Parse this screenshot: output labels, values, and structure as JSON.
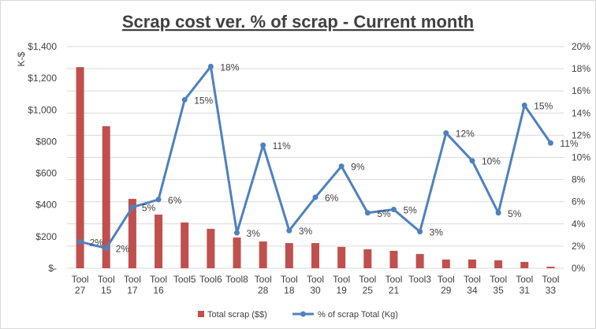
{
  "chart_data": {
    "type": "bar+line",
    "title": "Scrap cost ver. % of scrap - Current month",
    "ylabel": "K-$",
    "ylabel_right": "",
    "categories": [
      "Tool 27",
      "Tool 15",
      "Tool 17",
      "Tool 16",
      "Tool5",
      "Tool6",
      "Tool8",
      "Tool 28",
      "Tool 18",
      "Tool 30",
      "Tool 19",
      "Tool 25",
      "Tool 21",
      "Tool3",
      "Tool 29",
      "Tool 34",
      "Tool 35",
      "Tool 31",
      "Tool 33"
    ],
    "ylim": [
      0,
      1400
    ],
    "y_ticks": [
      "$-",
      "$200",
      "$400",
      "$600",
      "$800",
      "$1,000",
      "$1,200",
      "$1,400"
    ],
    "y2lim": [
      0,
      0.2
    ],
    "y2_ticks": [
      "0%",
      "2%",
      "4%",
      "6%",
      "8%",
      "10%",
      "12%",
      "14%",
      "16%",
      "18%",
      "20%"
    ],
    "grid": true,
    "legend_position": "bottom",
    "series": [
      {
        "name": "Total scrap ($$)",
        "type": "bar",
        "axis": "left",
        "color": "#c0504d",
        "values": [
          1270,
          897,
          438,
          339,
          289,
          249,
          194,
          169,
          159,
          159,
          135,
          120,
          110,
          90,
          55,
          55,
          50,
          40,
          10
        ]
      },
      {
        "name": "% of scrap Total (Kg)",
        "type": "line",
        "axis": "right",
        "color": "#4f81bd",
        "values": [
          0.024,
          0.018,
          0.055,
          0.062,
          0.152,
          0.182,
          0.032,
          0.111,
          0.034,
          0.064,
          0.092,
          0.05,
          0.053,
          0.033,
          0.122,
          0.097,
          0.05,
          0.147,
          0.113
        ],
        "labels": [
          "2%",
          "2%",
          "5%",
          "6%",
          "15%",
          "18%",
          "3%",
          "11%",
          "3%",
          "6%",
          "9%",
          "5%",
          "5%",
          "3%",
          "12%",
          "10%",
          "5%",
          "15%",
          "11%"
        ]
      }
    ]
  }
}
